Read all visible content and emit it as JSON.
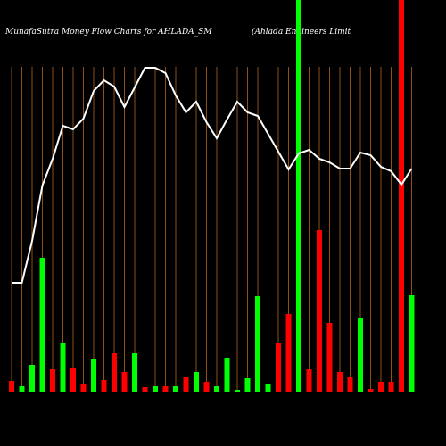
{
  "chart_data": {
    "type": "bar-line",
    "title": "MunafaSutra  Money Flow  Charts for AHLADA_SM",
    "subtitle": "(Ahlada  Engineers Limit",
    "ylim": [
      0,
      440
    ],
    "bars": {
      "values": [
        13,
        7,
        31,
        151,
        26,
        56,
        27,
        9,
        38,
        14,
        44,
        23,
        44,
        6,
        7,
        7,
        7,
        17,
        23,
        12,
        7,
        39,
        3,
        16,
        108,
        9,
        56,
        88,
        440,
        26,
        182,
        78,
        23,
        17,
        83,
        4,
        12,
        12,
        440,
        109
      ],
      "colors": [
        "#ff0000",
        "#00ff00",
        "#00ff00",
        "#00ff00",
        "#ff0000",
        "#00ff00",
        "#ff0000",
        "#ff0000",
        "#00ff00",
        "#ff0000",
        "#ff0000",
        "#ff0000",
        "#00ff00",
        "#ff0000",
        "#00ff00",
        "#ff0000",
        "#00ff00",
        "#ff0000",
        "#00ff00",
        "#ff0000",
        "#00ff00",
        "#00ff00",
        "#00ff00",
        "#00ff00",
        "#00ff00",
        "#00ff00",
        "#ff0000",
        "#ff0000",
        "#00ff00",
        "#ff0000",
        "#ff0000",
        "#ff0000",
        "#ff0000",
        "#ff0000",
        "#00ff00",
        "#ff0000",
        "#ff0000",
        "#ff0000",
        "#ff0000",
        "#00ff00"
      ]
    },
    "line": {
      "color": "#ffffff",
      "values": [
        123,
        123,
        170,
        232,
        262,
        299,
        295,
        307,
        338,
        350,
        343,
        320,
        342,
        364,
        364,
        358,
        333,
        314,
        326,
        303,
        285,
        306,
        326,
        314,
        310,
        290,
        270,
        250,
        268,
        272,
        262,
        258,
        251,
        251,
        269,
        266,
        253,
        248,
        233,
        251
      ]
    },
    "gridline_color": "#b5651d"
  }
}
